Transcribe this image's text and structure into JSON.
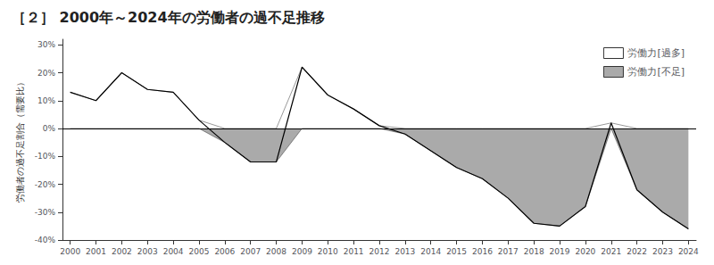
{
  "chart_data": {
    "type": "area",
    "title": "［２］ 2000年～2024年の労働者の過不足推移",
    "ylabel": "労働者の過不足割合（需要比）",
    "x": [
      2000,
      2001,
      2002,
      2003,
      2004,
      2005,
      2006,
      2007,
      2008,
      2009,
      2010,
      2011,
      2012,
      2013,
      2014,
      2015,
      2016,
      2017,
      2018,
      2019,
      2020,
      2021,
      2022,
      2023,
      2024
    ],
    "series": [
      {
        "name": "労働力[過多]",
        "type": "area",
        "color": "#ffffff",
        "values": [
          13,
          10,
          20,
          14,
          13,
          3,
          0,
          0,
          0,
          22,
          12,
          7,
          1,
          0,
          0,
          0,
          0,
          0,
          0,
          0,
          0,
          2,
          0,
          0,
          0
        ]
      },
      {
        "name": "労働力[不足]",
        "type": "area",
        "color": "#aaaaaa",
        "values": [
          0,
          0,
          0,
          0,
          0,
          0,
          -5,
          -12,
          -12,
          0,
          0,
          0,
          0,
          -2,
          -8,
          -14,
          -18,
          -25,
          -34,
          -35,
          -28,
          0,
          -22,
          -30,
          -36
        ]
      },
      {
        "type": "line",
        "color": "#000000",
        "values": [
          13,
          10,
          20,
          14,
          13,
          3,
          -5,
          -12,
          -12,
          22,
          12,
          7,
          1,
          -2,
          -8,
          -14,
          -18,
          -25,
          -34,
          -35,
          -28,
          2,
          -22,
          -30,
          -36
        ]
      }
    ],
    "xlim": [
      1999.7,
      2024.3
    ],
    "xticks": [
      2000,
      2001,
      2002,
      2003,
      2004,
      2005,
      2006,
      2007,
      2008,
      2009,
      2010,
      2011,
      2012,
      2013,
      2014,
      2015,
      2016,
      2017,
      2018,
      2019,
      2020,
      2021,
      2022,
      2023,
      2024
    ],
    "ylim": [
      -40,
      32
    ],
    "yticks": [
      {
        "value": -40,
        "label": "-40%"
      },
      {
        "value": -30,
        "label": "-30%"
      },
      {
        "value": -20,
        "label": "-20%"
      },
      {
        "value": -10,
        "label": "-10%"
      },
      {
        "value": 0,
        "label": "0%"
      },
      {
        "value": 10,
        "label": "10%"
      },
      {
        "value": 20,
        "label": "20%"
      },
      {
        "value": 30,
        "label": "30%"
      }
    ],
    "grid": false,
    "legend": "upper right"
  }
}
